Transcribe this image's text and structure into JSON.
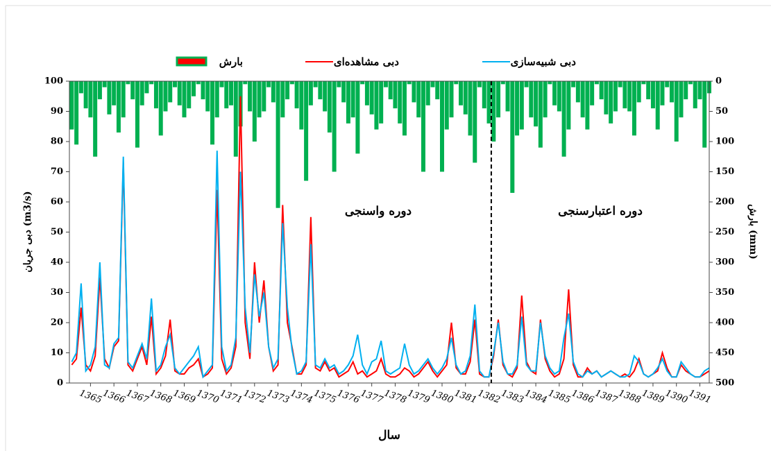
{
  "chart_data": {
    "type": "line",
    "x_title": "سال",
    "y_title": "دبی جریان (m3/s)",
    "y2_title": "بارش (mm)",
    "annotations": [
      "دوره واسنجی",
      "دوره اعتبارسنجی"
    ],
    "divider_x": 1382.1,
    "xlim": [
      1364.1,
      1391.4
    ],
    "xticks": [
      1365,
      1366,
      1367,
      1368,
      1369,
      1370,
      1371,
      1372,
      1373,
      1374,
      1375,
      1376,
      1377,
      1378,
      1379,
      1380,
      1381,
      1382,
      1383,
      1384,
      1385,
      1386,
      1387,
      1388,
      1389,
      1390,
      1391
    ],
    "ylim": [
      0,
      100
    ],
    "yticks": [
      0,
      10,
      20,
      30,
      40,
      50,
      60,
      70,
      80,
      90,
      100
    ],
    "y2lim": [
      0,
      500
    ],
    "y2ticks": [
      0,
      50,
      100,
      150,
      200,
      250,
      300,
      350,
      400,
      450,
      500
    ],
    "y2_inverted": true,
    "x": [
      1364.2,
      1364.4,
      1364.6,
      1364.8,
      1365,
      1365.2,
      1365.4,
      1365.6,
      1365.8,
      1366,
      1366.2,
      1366.4,
      1366.6,
      1366.8,
      1367,
      1367.2,
      1367.4,
      1367.6,
      1367.8,
      1368,
      1368.2,
      1368.4,
      1368.6,
      1368.8,
      1369,
      1369.2,
      1369.4,
      1369.6,
      1369.8,
      1370,
      1370.2,
      1370.4,
      1370.6,
      1370.8,
      1371,
      1371.2,
      1371.4,
      1371.6,
      1371.8,
      1372,
      1372.2,
      1372.4,
      1372.6,
      1372.8,
      1373,
      1373.2,
      1373.4,
      1373.6,
      1373.8,
      1374,
      1374.2,
      1374.4,
      1374.6,
      1374.8,
      1375,
      1375.2,
      1375.4,
      1375.6,
      1375.8,
      1376,
      1376.2,
      1376.4,
      1376.6,
      1376.8,
      1377,
      1377.2,
      1377.4,
      1377.6,
      1377.8,
      1378,
      1378.2,
      1378.4,
      1378.6,
      1378.8,
      1379,
      1379.2,
      1379.4,
      1379.6,
      1379.8,
      1380,
      1380.2,
      1380.4,
      1380.6,
      1380.8,
      1381,
      1381.2,
      1381.4,
      1381.6,
      1381.8,
      1382,
      1382.2,
      1382.4,
      1382.6,
      1382.8,
      1383,
      1383.2,
      1383.4,
      1383.6,
      1383.8,
      1384,
      1384.2,
      1384.4,
      1384.6,
      1384.8,
      1385,
      1385.2,
      1385.4,
      1385.6,
      1385.8,
      1386,
      1386.2,
      1386.4,
      1386.6,
      1386.8,
      1387,
      1387.2,
      1387.4,
      1387.6,
      1387.8,
      1388,
      1388.2,
      1388.4,
      1388.6,
      1388.8,
      1389,
      1389.2,
      1389.4,
      1389.6,
      1389.8,
      1390,
      1390.2,
      1390.4,
      1390.6,
      1390.8,
      1391,
      1391.2,
      1391.4
    ],
    "series": [
      {
        "name": "بارش",
        "type": "bar",
        "axis": "y2",
        "color": "#00b050",
        "values": [
          80,
          105,
          20,
          45,
          60,
          125,
          30,
          10,
          55,
          40,
          85,
          60,
          5,
          30,
          110,
          40,
          20,
          5,
          45,
          90,
          50,
          35,
          10,
          40,
          60,
          45,
          25,
          5,
          30,
          50,
          105,
          60,
          10,
          45,
          40,
          125,
          75,
          5,
          50,
          100,
          60,
          50,
          10,
          35,
          210,
          60,
          30,
          5,
          45,
          80,
          165,
          40,
          10,
          30,
          50,
          85,
          150,
          10,
          35,
          70,
          60,
          120,
          5,
          40,
          55,
          80,
          70,
          10,
          30,
          45,
          70,
          90,
          5,
          35,
          60,
          150,
          40,
          10,
          30,
          150,
          80,
          60,
          5,
          40,
          55,
          90,
          135,
          10,
          45,
          70,
          100,
          60,
          5,
          50,
          185,
          90,
          80,
          10,
          60,
          75,
          110,
          60,
          5,
          40,
          50,
          125,
          80,
          10,
          35,
          60,
          80,
          40,
          5,
          30,
          55,
          70,
          50,
          10,
          45,
          50,
          90,
          35,
          5,
          30,
          45,
          80,
          40,
          10,
          35,
          100,
          60,
          30,
          5,
          45,
          30,
          110,
          20
        ]
      },
      {
        "name": "دبی مشاهده‌ای",
        "type": "line",
        "color": "#ff0000",
        "values": [
          6,
          8,
          25,
          6,
          4,
          9,
          35,
          8,
          5,
          12,
          14,
          73,
          6,
          4,
          8,
          12,
          6,
          22,
          3,
          5,
          9,
          21,
          4,
          3,
          3,
          5,
          6,
          8,
          2,
          3,
          5,
          64,
          8,
          3,
          5,
          12,
          95,
          20,
          8,
          40,
          20,
          34,
          12,
          4,
          6,
          59,
          20,
          12,
          3,
          3,
          6,
          55,
          5,
          4,
          7,
          4,
          5,
          2,
          3,
          4,
          7,
          3,
          4,
          2,
          3,
          4,
          8,
          3,
          2,
          2,
          3,
          5,
          4,
          2,
          3,
          5,
          7,
          4,
          2,
          4,
          6,
          20,
          5,
          3,
          3,
          7,
          21,
          3,
          2,
          2,
          9,
          21,
          6,
          3,
          2,
          5,
          29,
          7,
          4,
          3,
          21,
          8,
          4,
          2,
          3,
          8,
          31,
          6,
          2,
          2,
          5,
          3,
          4,
          2,
          3,
          4,
          3,
          2,
          3,
          2,
          4,
          8,
          3,
          2,
          3,
          4,
          10,
          5,
          2,
          2,
          6,
          4,
          3,
          2,
          2,
          3,
          4
        ]
      },
      {
        "name": "دبی شبیه‌سازی",
        "type": "line",
        "color": "#00b0f0",
        "values": [
          7,
          10,
          33,
          4,
          6,
          12,
          40,
          6,
          5,
          13,
          15,
          75,
          7,
          5,
          9,
          13,
          8,
          28,
          4,
          6,
          12,
          16,
          5,
          3,
          5,
          7,
          9,
          12,
          2,
          4,
          6,
          77,
          12,
          4,
          6,
          15,
          70,
          25,
          10,
          36,
          22,
          30,
          12,
          5,
          8,
          53,
          25,
          11,
          3,
          4,
          7,
          46,
          6,
          5,
          8,
          5,
          6,
          3,
          4,
          6,
          9,
          16,
          6,
          3,
          7,
          8,
          14,
          4,
          3,
          4,
          5,
          13,
          6,
          3,
          4,
          6,
          8,
          5,
          3,
          5,
          8,
          15,
          6,
          3,
          4,
          9,
          26,
          4,
          2,
          2,
          10,
          20,
          7,
          3,
          3,
          6,
          22,
          6,
          4,
          4,
          20,
          9,
          5,
          3,
          4,
          15,
          23,
          7,
          3,
          2,
          4,
          3,
          4,
          2,
          3,
          4,
          3,
          2,
          2,
          3,
          9,
          7,
          3,
          2,
          3,
          5,
          8,
          4,
          2,
          2,
          7,
          5,
          3,
          2,
          2,
          4,
          5
        ]
      }
    ]
  }
}
